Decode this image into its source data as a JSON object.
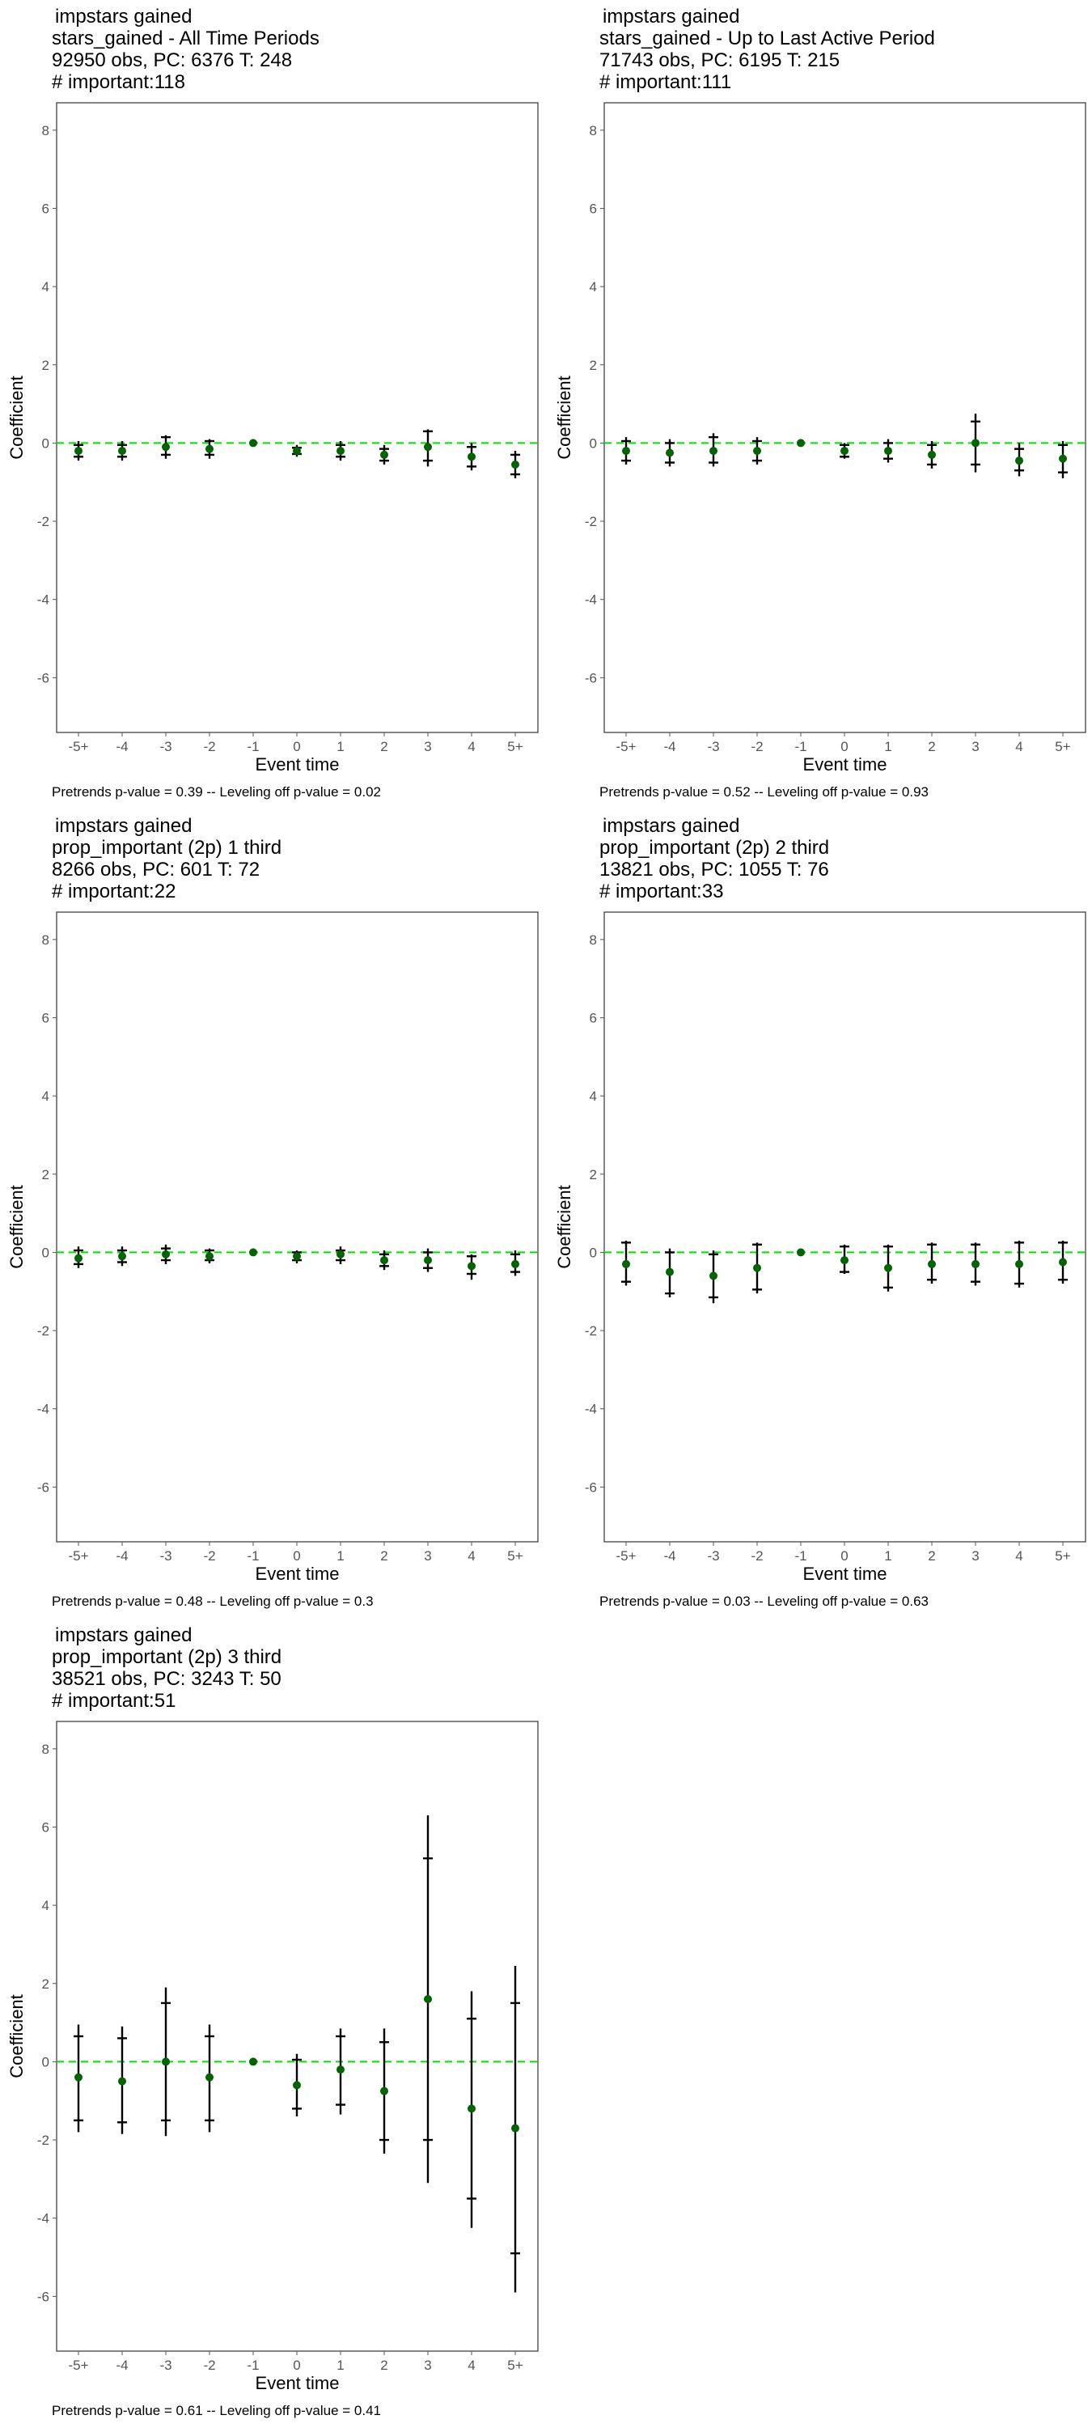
{
  "page": {
    "background": "#ffffff"
  },
  "style": {
    "zero_line_color": "#00e000",
    "point_color": "#006400",
    "errorbar_color": "#000000",
    "panel_border_color": "#333333",
    "tick_color": "#555555"
  },
  "chart_data": [
    {
      "type": "scatter",
      "title_lines": [
        "impstars gained",
        "stars_gained - All Time Periods",
        "92950 obs, PC: 6376 T: 248",
        "# important:118"
      ],
      "xlabel": "Event time",
      "ylabel": "Coefficient",
      "categories": [
        "-5+",
        "-4",
        "-3",
        "-2",
        "-1",
        "0",
        "1",
        "2",
        "3",
        "4",
        "5+"
      ],
      "yticks": [
        -6,
        -4,
        -2,
        0,
        2,
        4,
        6,
        8
      ],
      "ylim": [
        -7.4,
        8.7
      ],
      "grid": false,
      "reference_line": 0,
      "series": [
        {
          "values": [
            -0.2,
            -0.2,
            -0.1,
            -0.15,
            0,
            -0.2,
            -0.2,
            -0.3,
            -0.1,
            -0.35,
            -0.55
          ],
          "ci_inner_low": [
            -0.35,
            -0.35,
            -0.3,
            -0.3,
            0,
            -0.28,
            -0.35,
            -0.45,
            -0.45,
            -0.6,
            -0.8
          ],
          "ci_inner_high": [
            -0.05,
            -0.05,
            0.15,
            0.05,
            0,
            -0.12,
            -0.05,
            -0.15,
            0.3,
            -0.1,
            -0.3
          ],
          "ci_outer_low": [
            -0.45,
            -0.45,
            -0.4,
            -0.4,
            0,
            -0.35,
            -0.45,
            -0.55,
            -0.6,
            -0.7,
            -0.9
          ],
          "ci_outer_high": [
            0.05,
            0.05,
            0.2,
            0.1,
            0,
            -0.05,
            0.05,
            -0.05,
            0.35,
            0,
            -0.2
          ]
        }
      ],
      "footnote": "Pretrends p-value = 0.39 -- Leveling off p-value = 0.02"
    },
    {
      "type": "scatter",
      "title_lines": [
        "impstars gained",
        "stars_gained - Up to Last Active Period",
        "71743 obs, PC: 6195 T: 215",
        "# important:111"
      ],
      "xlabel": "Event time",
      "ylabel": "Coefficient",
      "categories": [
        "-5+",
        "-4",
        "-3",
        "-2",
        "-1",
        "0",
        "1",
        "2",
        "3",
        "4",
        "5+"
      ],
      "yticks": [
        -6,
        -4,
        -2,
        0,
        2,
        4,
        6,
        8
      ],
      "ylim": [
        -7.4,
        8.7
      ],
      "grid": false,
      "reference_line": 0,
      "series": [
        {
          "values": [
            -0.2,
            -0.25,
            -0.2,
            -0.2,
            0,
            -0.2,
            -0.2,
            -0.3,
            0,
            -0.45,
            -0.4
          ],
          "ci_inner_low": [
            -0.45,
            -0.5,
            -0.5,
            -0.45,
            0,
            -0.35,
            -0.4,
            -0.55,
            -0.55,
            -0.7,
            -0.75
          ],
          "ci_inner_high": [
            0.05,
            0.0,
            0.15,
            0.05,
            0,
            -0.05,
            0,
            -0.05,
            0.55,
            -0.15,
            -0.05
          ],
          "ci_outer_low": [
            -0.55,
            -0.6,
            -0.6,
            -0.55,
            0,
            -0.4,
            -0.5,
            -0.65,
            -0.75,
            -0.85,
            -0.9
          ],
          "ci_outer_high": [
            0.15,
            0.1,
            0.25,
            0.15,
            0,
            0.0,
            0.1,
            0.05,
            0.75,
            0,
            0.05
          ]
        }
      ],
      "footnote": "Pretrends p-value = 0.52 -- Leveling off p-value = 0.93"
    },
    {
      "type": "scatter",
      "title_lines": [
        "impstars gained",
        "prop_important (2p) 1 third",
        "8266 obs, PC: 601 T: 72",
        "# important:22"
      ],
      "xlabel": "Event time",
      "ylabel": "Coefficient",
      "categories": [
        "-5+",
        "-4",
        "-3",
        "-2",
        "-1",
        "0",
        "1",
        "2",
        "3",
        "4",
        "5+"
      ],
      "yticks": [
        -6,
        -4,
        -2,
        0,
        2,
        4,
        6,
        8
      ],
      "ylim": [
        -7.4,
        8.7
      ],
      "grid": false,
      "reference_line": 0,
      "series": [
        {
          "values": [
            -0.15,
            -0.1,
            -0.05,
            -0.1,
            0,
            -0.1,
            -0.05,
            -0.2,
            -0.2,
            -0.35,
            -0.3
          ],
          "ci_inner_low": [
            -0.3,
            -0.25,
            -0.2,
            -0.2,
            0,
            -0.2,
            -0.2,
            -0.35,
            -0.4,
            -0.55,
            -0.5
          ],
          "ci_inner_high": [
            0.05,
            0.05,
            0.1,
            0.05,
            0,
            0.0,
            0.05,
            -0.05,
            0.0,
            -0.1,
            -0.05
          ],
          "ci_outer_low": [
            -0.4,
            -0.35,
            -0.3,
            -0.28,
            0,
            -0.28,
            -0.3,
            -0.45,
            -0.5,
            -0.7,
            -0.6
          ],
          "ci_outer_high": [
            0.15,
            0.15,
            0.2,
            0.1,
            0,
            0.05,
            0.15,
            0.05,
            0.1,
            -0.05,
            0.05
          ]
        }
      ],
      "footnote": "Pretrends p-value = 0.48 -- Leveling off p-value = 0.3"
    },
    {
      "type": "scatter",
      "title_lines": [
        "impstars gained",
        "prop_important (2p) 2 third",
        "13821 obs, PC: 1055 T: 76",
        "# important:33"
      ],
      "xlabel": "Event time",
      "ylabel": "Coefficient",
      "categories": [
        "-5+",
        "-4",
        "-3",
        "-2",
        "-1",
        "0",
        "1",
        "2",
        "3",
        "4",
        "5+"
      ],
      "yticks": [
        -6,
        -4,
        -2,
        0,
        2,
        4,
        6,
        8
      ],
      "ylim": [
        -7.4,
        8.7
      ],
      "grid": false,
      "reference_line": 0,
      "series": [
        {
          "values": [
            -0.3,
            -0.5,
            -0.6,
            -0.4,
            0,
            -0.2,
            -0.4,
            -0.3,
            -0.3,
            -0.3,
            -0.25
          ],
          "ci_inner_low": [
            -0.75,
            -1.05,
            -1.15,
            -0.95,
            0,
            -0.5,
            -0.9,
            -0.7,
            -0.75,
            -0.8,
            -0.7
          ],
          "ci_inner_high": [
            0.25,
            0.0,
            -0.05,
            0.2,
            0,
            0.15,
            0.15,
            0.2,
            0.2,
            0.25,
            0.25
          ],
          "ci_outer_low": [
            -0.85,
            -1.15,
            -1.3,
            -1.05,
            0,
            -0.55,
            -1.0,
            -0.8,
            -0.85,
            -0.9,
            -0.8
          ],
          "ci_outer_high": [
            0.3,
            0.1,
            0.05,
            0.25,
            0,
            0.2,
            0.2,
            0.25,
            0.25,
            0.3,
            0.3
          ]
        }
      ],
      "footnote": "Pretrends p-value = 0.03 -- Leveling off p-value = 0.63"
    },
    {
      "type": "scatter",
      "title_lines": [
        "impstars gained",
        "prop_important (2p) 3 third",
        "38521 obs, PC: 3243 T: 50",
        "# important:51"
      ],
      "xlabel": "Event time",
      "ylabel": "Coefficient",
      "categories": [
        "-5+",
        "-4",
        "-3",
        "-2",
        "-1",
        "0",
        "1",
        "2",
        "3",
        "4",
        "5+"
      ],
      "yticks": [
        -6,
        -4,
        -2,
        0,
        2,
        4,
        6,
        8
      ],
      "ylim": [
        -7.4,
        8.7
      ],
      "grid": false,
      "reference_line": 0,
      "series": [
        {
          "values": [
            -0.4,
            -0.5,
            0,
            -0.4,
            0,
            -0.6,
            -0.2,
            -0.75,
            1.6,
            -1.2,
            -1.7
          ],
          "ci_inner_low": [
            -1.5,
            -1.55,
            -1.5,
            -1.5,
            0,
            -1.2,
            -1.1,
            -2.0,
            -2.0,
            -3.5,
            -4.9
          ],
          "ci_inner_high": [
            0.65,
            0.6,
            1.5,
            0.65,
            0,
            0.05,
            0.65,
            0.5,
            5.2,
            1.1,
            1.5
          ],
          "ci_outer_low": [
            -1.8,
            -1.85,
            -1.9,
            -1.8,
            0,
            -1.4,
            -1.35,
            -2.35,
            -3.1,
            -4.25,
            -5.9
          ],
          "ci_outer_high": [
            0.95,
            0.9,
            1.9,
            0.95,
            0,
            0.2,
            0.85,
            0.85,
            6.3,
            1.8,
            2.45
          ]
        }
      ],
      "footnote": "Pretrends p-value = 0.61 -- Leveling off p-value = 0.41"
    }
  ]
}
